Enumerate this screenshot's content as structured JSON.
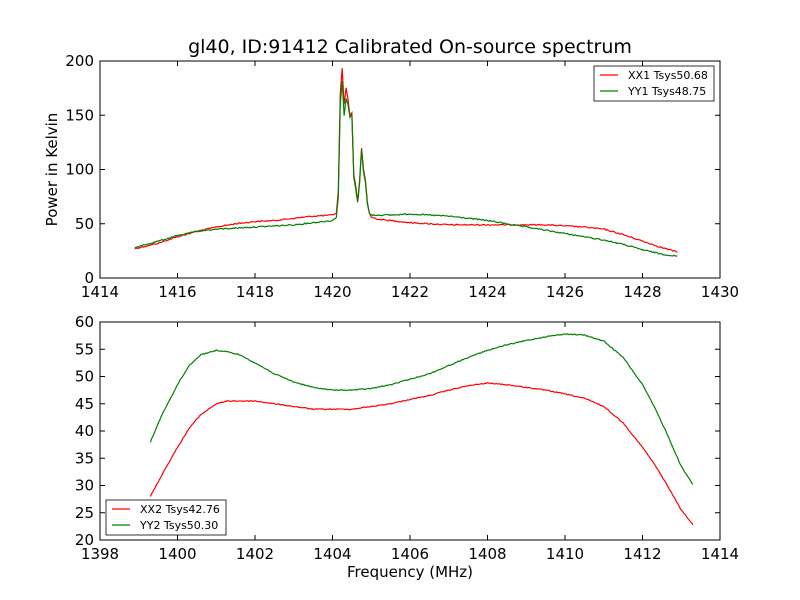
{
  "figure": {
    "title": "gl40, ID:91412 Calibrated On-source spectrum",
    "background": "#ffffff"
  },
  "chart_data": [
    {
      "type": "line",
      "title": "gl40, ID:91412 Calibrated On-source spectrum",
      "xlabel": "",
      "ylabel": "Power in Kelvin",
      "xlim": [
        1414,
        1430
      ],
      "ylim": [
        0,
        200
      ],
      "xticks": [
        "1414",
        "1416",
        "1418",
        "1420",
        "1422",
        "1424",
        "1426",
        "1428",
        "1430"
      ],
      "yticks": [
        "0",
        "50",
        "100",
        "150",
        "200"
      ],
      "legend_position": "top-right",
      "grid": false,
      "series": [
        {
          "name": "XX1 Tsys50.68",
          "color": "#ff0000",
          "x": [
            1414.9,
            1415.5,
            1416.0,
            1416.5,
            1417.0,
            1417.5,
            1418.0,
            1418.5,
            1419.0,
            1419.5,
            1420.0,
            1420.1,
            1420.15,
            1420.2,
            1420.25,
            1420.3,
            1420.35,
            1420.4,
            1420.45,
            1420.5,
            1420.55,
            1420.6,
            1420.65,
            1420.7,
            1420.75,
            1420.8,
            1420.85,
            1420.9,
            1420.95,
            1421.0,
            1421.2,
            1421.5,
            1422.0,
            1422.5,
            1423.0,
            1423.5,
            1424.0,
            1424.5,
            1425.0,
            1425.5,
            1426.0,
            1426.5,
            1427.0,
            1427.5,
            1428.0,
            1428.5,
            1428.9
          ],
          "y": [
            27,
            32,
            38,
            43,
            47,
            50,
            52,
            53,
            55,
            57,
            58,
            60,
            80,
            170,
            193,
            160,
            175,
            165,
            150,
            152,
            95,
            85,
            70,
            90,
            120,
            100,
            90,
            70,
            60,
            56,
            54,
            53,
            51,
            50,
            49,
            49,
            49,
            49,
            49,
            49,
            48,
            47,
            45,
            40,
            34,
            28,
            24
          ]
        },
        {
          "name": "YY1 Tsys48.75",
          "color": "#008000",
          "x": [
            1414.9,
            1415.5,
            1416.0,
            1416.5,
            1417.0,
            1417.5,
            1418.0,
            1418.5,
            1419.0,
            1419.5,
            1420.0,
            1420.1,
            1420.15,
            1420.2,
            1420.25,
            1420.3,
            1420.35,
            1420.4,
            1420.45,
            1420.5,
            1420.55,
            1420.6,
            1420.65,
            1420.7,
            1420.75,
            1420.8,
            1420.85,
            1420.9,
            1420.95,
            1421.0,
            1421.2,
            1421.5,
            1422.0,
            1422.5,
            1423.0,
            1423.5,
            1424.0,
            1424.5,
            1425.0,
            1425.5,
            1426.0,
            1426.5,
            1427.0,
            1427.5,
            1428.0,
            1428.5,
            1428.9
          ],
          "y": [
            28,
            34,
            39,
            43,
            45,
            46,
            47,
            48,
            49,
            51,
            53,
            56,
            75,
            160,
            182,
            150,
            165,
            160,
            148,
            150,
            92,
            82,
            70,
            88,
            118,
            98,
            88,
            68,
            60,
            58,
            58,
            58,
            59,
            58,
            57,
            55,
            53,
            50,
            47,
            44,
            41,
            38,
            35,
            31,
            26,
            22,
            20
          ]
        }
      ]
    },
    {
      "type": "line",
      "title": "",
      "xlabel": "Frequency (MHz)",
      "ylabel": "",
      "xlim": [
        1398,
        1414
      ],
      "ylim": [
        20,
        60
      ],
      "xticks": [
        "1398",
        "1400",
        "1402",
        "1404",
        "1406",
        "1408",
        "1410",
        "1412",
        "1414"
      ],
      "yticks": [
        "20",
        "25",
        "30",
        "35",
        "40",
        "45",
        "50",
        "55",
        "60"
      ],
      "legend_position": "bottom-left",
      "grid": false,
      "series": [
        {
          "name": "XX2 Tsys42.76",
          "color": "#ff0000",
          "x": [
            1399.3,
            1399.6,
            1400.0,
            1400.3,
            1400.6,
            1401.0,
            1401.3,
            1401.6,
            1402.0,
            1402.5,
            1403.0,
            1403.5,
            1404.0,
            1404.5,
            1405.0,
            1405.5,
            1406.0,
            1406.5,
            1407.0,
            1407.5,
            1408.0,
            1408.5,
            1409.0,
            1409.5,
            1410.0,
            1410.5,
            1411.0,
            1411.5,
            1412.0,
            1412.3,
            1412.6,
            1413.0,
            1413.3
          ],
          "y": [
            28,
            32,
            37,
            40.5,
            43,
            45,
            45.5,
            45.5,
            45.5,
            45,
            44.5,
            44,
            44,
            44,
            44.5,
            45,
            45.8,
            46.5,
            47.5,
            48.3,
            48.8,
            48.5,
            48,
            47.5,
            46.8,
            46,
            44.5,
            41.5,
            37,
            34,
            30.5,
            25.5,
            22.8
          ]
        },
        {
          "name": "YY2 Tsys50.30",
          "color": "#008000",
          "x": [
            1399.3,
            1399.6,
            1400.0,
            1400.3,
            1400.6,
            1401.0,
            1401.3,
            1401.6,
            1402.0,
            1402.5,
            1403.0,
            1403.5,
            1404.0,
            1404.5,
            1405.0,
            1405.5,
            1406.0,
            1406.5,
            1407.0,
            1407.5,
            1408.0,
            1408.5,
            1409.0,
            1409.5,
            1410.0,
            1410.5,
            1411.0,
            1411.5,
            1412.0,
            1412.3,
            1412.6,
            1413.0,
            1413.3
          ],
          "y": [
            38,
            43,
            48.5,
            52,
            54,
            54.8,
            54.5,
            54,
            52.5,
            50.5,
            49,
            48,
            47.5,
            47.5,
            47.8,
            48.5,
            49.5,
            50.5,
            52,
            53.5,
            54.8,
            55.8,
            56.6,
            57.3,
            57.8,
            57.6,
            56.5,
            53.5,
            48.5,
            44.5,
            40,
            33.5,
            30.2
          ]
        }
      ]
    }
  ]
}
